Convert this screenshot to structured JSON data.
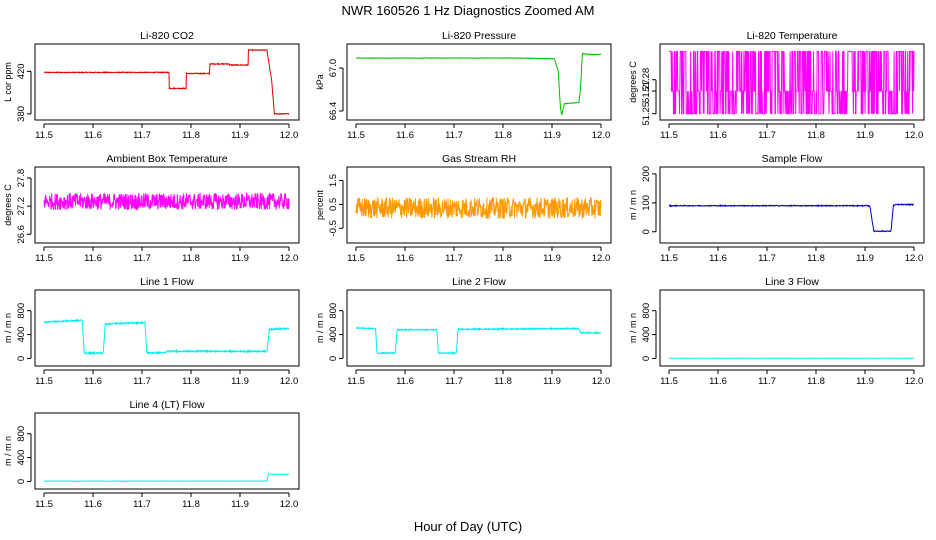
{
  "title": "NWR  160526  1 Hz Diagnostics Zoomed AM",
  "xlabel": "Hour of Day (UTC)",
  "chart_data": [
    {
      "type": "line",
      "title": "Li-820 CO2",
      "ylabel": "L cor ppm",
      "color": "#e00000",
      "xlim": [
        11.5,
        12.0
      ],
      "xticks": [
        11.5,
        11.6,
        11.7,
        11.8,
        11.9,
        12.0
      ],
      "xtick_labels": [
        "11.5",
        "11.6",
        "11.7",
        "11.8",
        "11.9",
        "12.0"
      ],
      "ylim": [
        378,
        442
      ],
      "yticks": [
        380,
        420
      ],
      "ytick_labels": [
        "380",
        "420"
      ],
      "noise": 0.4,
      "x": [
        11.5,
        11.755,
        11.755,
        11.79,
        11.79,
        11.838,
        11.838,
        11.878,
        11.878,
        11.917,
        11.917,
        11.955,
        11.965,
        11.97,
        12.0
      ],
      "y": [
        419,
        419,
        404,
        404,
        418,
        418,
        427,
        427,
        426,
        426,
        440,
        440,
        410,
        380,
        380
      ]
    },
    {
      "type": "line",
      "title": "Li-820 Pressure",
      "ylabel": "kPa",
      "color": "#00bb00",
      "xlim": [
        11.5,
        12.0
      ],
      "xticks": [
        11.5,
        11.6,
        11.7,
        11.8,
        11.9,
        12.0
      ],
      "xtick_labels": [
        "11.5",
        "11.6",
        "11.7",
        "11.8",
        "11.9",
        "12.0"
      ],
      "ylim": [
        66.33,
        67.28
      ],
      "yticks": [
        66.4,
        67.0
      ],
      "ytick_labels": [
        "66.4",
        "67.0"
      ],
      "noise": 0.003,
      "x": [
        11.5,
        11.83,
        11.905,
        11.913,
        11.917,
        11.92,
        11.925,
        11.955,
        11.958,
        11.962,
        11.98,
        12.0
      ],
      "y": [
        67.14,
        67.14,
        67.13,
        66.95,
        66.45,
        66.35,
        66.5,
        66.52,
        66.7,
        67.2,
        67.19,
        67.19
      ]
    },
    {
      "type": "line",
      "title": "Li-820 Temperature",
      "ylabel": "degrees C",
      "color": "#ff00ff",
      "xlim": [
        11.5,
        12.0
      ],
      "xticks": [
        11.5,
        11.6,
        11.7,
        11.8,
        11.9,
        12.0
      ],
      "xtick_labels": [
        "11.5",
        "11.6",
        "11.7",
        "11.8",
        "11.9",
        "12.0"
      ],
      "ylim": [
        51.248,
        51.308
      ],
      "yticks": [
        51.25,
        51.27,
        51.28
      ],
      "ytick_labels": [
        "51.25",
        "51.27",
        "51.28"
      ],
      "levels": [
        51.25,
        51.27,
        51.305
      ],
      "x": [
        11.5,
        12.0
      ],
      "y": [
        51.27,
        51.27
      ]
    },
    {
      "type": "line",
      "title": "Ambient Box Temperature",
      "ylabel": "degrees C",
      "color": "#ff00ff",
      "xlim": [
        11.5,
        12.0
      ],
      "xticks": [
        11.5,
        11.6,
        11.7,
        11.8,
        11.9,
        12.0
      ],
      "xtick_labels": [
        "11.5",
        "11.6",
        "11.7",
        "11.8",
        "11.9",
        "12.0"
      ],
      "ylim": [
        26.5,
        27.95
      ],
      "yticks": [
        26.6,
        27.2,
        27.8
      ],
      "ytick_labels": [
        "26.6",
        "27.2",
        "27.8"
      ],
      "noise": 0.18,
      "x": [
        11.5,
        12.0
      ],
      "y": [
        27.3,
        27.3
      ]
    },
    {
      "type": "line",
      "title": "Gas Stream RH",
      "ylabel": "percent",
      "color": "#ff9900",
      "xlim": [
        11.5,
        12.0
      ],
      "xticks": [
        11.5,
        11.6,
        11.7,
        11.8,
        11.9,
        12.0
      ],
      "xtick_labels": [
        "11.5",
        "11.6",
        "11.7",
        "11.8",
        "11.9",
        "12.0"
      ],
      "ylim": [
        -0.95,
        1.9
      ],
      "yticks": [
        -0.5,
        0.5,
        1.5
      ],
      "ytick_labels": [
        "-0.5",
        "0.5",
        "1.5"
      ],
      "noise": 0.45,
      "x": [
        11.5,
        12.0
      ],
      "y": [
        0.35,
        0.35
      ]
    },
    {
      "type": "line",
      "title": "Sample Flow",
      "ylabel": "m / m n",
      "color": "#0000cc",
      "xlim": [
        11.5,
        12.0
      ],
      "xticks": [
        11.5,
        11.6,
        11.7,
        11.8,
        11.9,
        12.0
      ],
      "xtick_labels": [
        "11.5",
        "11.6",
        "11.7",
        "11.8",
        "11.9",
        "12.0"
      ],
      "ylim": [
        -25,
        210
      ],
      "yticks": [
        0,
        100,
        200
      ],
      "ytick_labels": [
        "0",
        "100",
        "200"
      ],
      "noise": 1.5,
      "x": [
        11.5,
        11.905,
        11.91,
        11.918,
        11.953,
        11.958,
        11.965,
        12.0
      ],
      "y": [
        90,
        90,
        88,
        2,
        2,
        92,
        94,
        94
      ]
    },
    {
      "type": "line",
      "title": "Line 1 Flow",
      "ylabel": "m / m n",
      "color": "#00eeee",
      "xlim": [
        11.5,
        12.0
      ],
      "xticks": [
        11.5,
        11.6,
        11.7,
        11.8,
        11.9,
        12.0
      ],
      "xtick_labels": [
        "11.5",
        "11.6",
        "11.7",
        "11.8",
        "11.9",
        "12.0"
      ],
      "ylim": [
        -60,
        1080
      ],
      "yticks": [
        0,
        400,
        800
      ],
      "ytick_labels": [
        "0",
        "400",
        "800"
      ],
      "noise": 12,
      "x": [
        11.5,
        11.578,
        11.582,
        11.621,
        11.625,
        11.706,
        11.71,
        11.748,
        11.752,
        11.955,
        11.96,
        12.0
      ],
      "y": [
        610,
        640,
        90,
        90,
        580,
        600,
        95,
        95,
        120,
        120,
        490,
        500
      ]
    },
    {
      "type": "line",
      "title": "Line 2 Flow",
      "ylabel": "m / m n",
      "color": "#00eeee",
      "xlim": [
        11.5,
        12.0
      ],
      "xticks": [
        11.5,
        11.6,
        11.7,
        11.8,
        11.9,
        12.0
      ],
      "xtick_labels": [
        "11.5",
        "11.6",
        "11.7",
        "11.8",
        "11.9",
        "12.0"
      ],
      "ylim": [
        -60,
        1080
      ],
      "yticks": [
        0,
        400,
        800
      ],
      "ytick_labels": [
        "0",
        "400",
        "800"
      ],
      "noise": 10,
      "x": [
        11.5,
        11.54,
        11.543,
        11.58,
        11.584,
        11.665,
        11.668,
        11.705,
        11.708,
        11.955,
        11.958,
        12.0
      ],
      "y": [
        510,
        500,
        90,
        90,
        480,
        480,
        90,
        90,
        490,
        500,
        430,
        430
      ]
    },
    {
      "type": "line",
      "title": "Line 3 Flow",
      "ylabel": "m / m n",
      "color": "#00eeee",
      "xlim": [
        11.5,
        12.0
      ],
      "xticks": [
        11.5,
        11.6,
        11.7,
        11.8,
        11.9,
        12.0
      ],
      "xtick_labels": [
        "11.5",
        "11.6",
        "11.7",
        "11.8",
        "11.9",
        "12.0"
      ],
      "ylim": [
        -60,
        1080
      ],
      "yticks": [
        0,
        400,
        800
      ],
      "ytick_labels": [
        "0",
        "400",
        "800"
      ],
      "noise": 1,
      "x": [
        11.5,
        12.0
      ],
      "y": [
        2,
        2
      ]
    },
    {
      "type": "line",
      "title": "Line 4 (LT) Flow",
      "ylabel": "m / m n",
      "color": "#00eeee",
      "xlim": [
        11.5,
        12.0
      ],
      "xticks": [
        11.5,
        11.6,
        11.7,
        11.8,
        11.9,
        12.0
      ],
      "xtick_labels": [
        "11.5",
        "11.6",
        "11.7",
        "11.8",
        "11.9",
        "12.0"
      ],
      "ylim": [
        -60,
        1080
      ],
      "yticks": [
        0,
        400,
        800
      ],
      "ytick_labels": [
        "0",
        "400",
        "800"
      ],
      "noise": 3,
      "x": [
        11.5,
        11.955,
        11.958,
        12.0
      ],
      "y": [
        5,
        5,
        120,
        120
      ]
    }
  ]
}
